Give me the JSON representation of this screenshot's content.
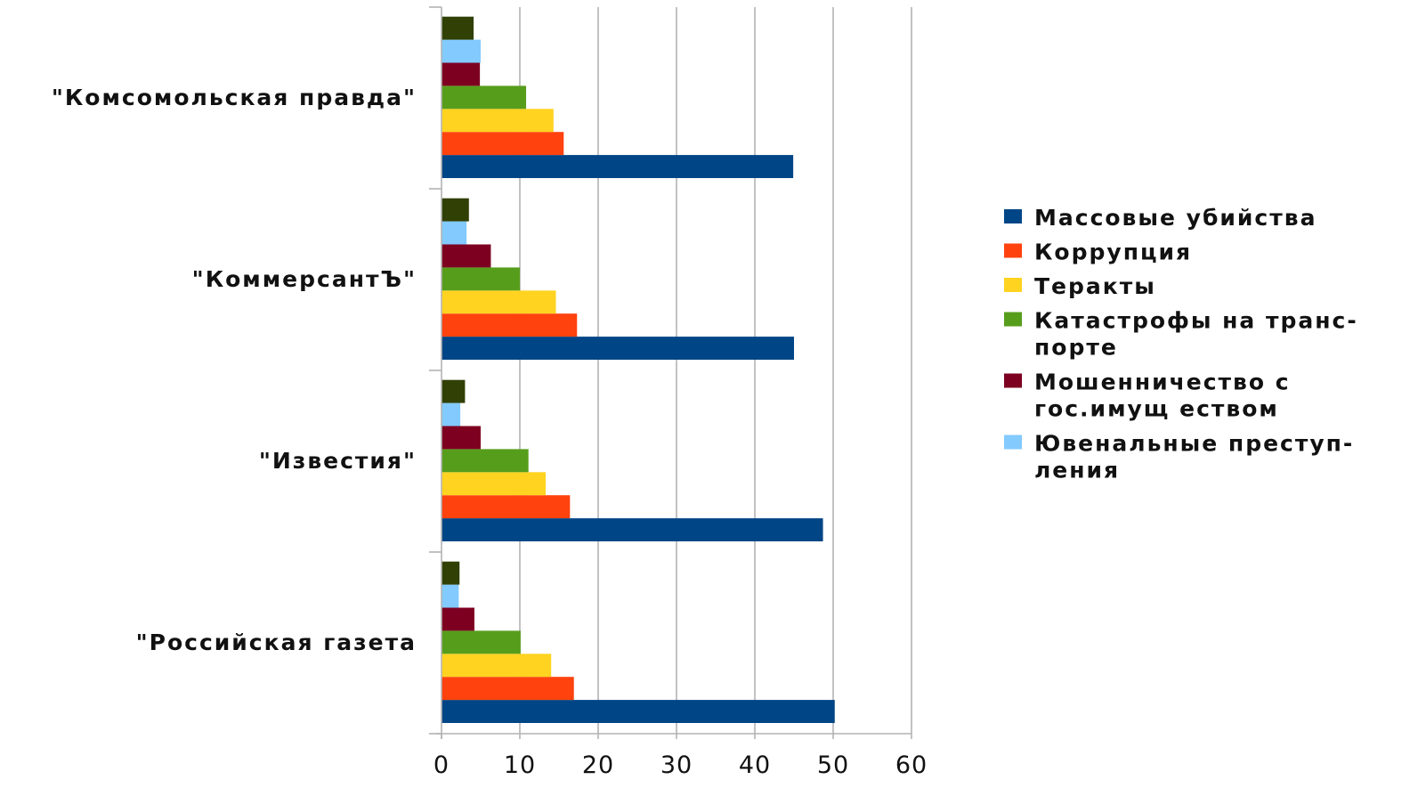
{
  "chart_data": {
    "type": "bar",
    "orientation": "horizontal",
    "categories": [
      "\"Комсомольская правда\"",
      "\"КоммерсантЪ\"",
      "\"Известия\"",
      "\"Российская газета"
    ],
    "series": [
      {
        "name": "Массовые убийства",
        "color": "#004586",
        "values": [
          44.9,
          45.0,
          48.7,
          50.2
        ]
      },
      {
        "name": "Коррупция",
        "color": "#ff420e",
        "values": [
          15.6,
          17.3,
          16.4,
          16.9
        ]
      },
      {
        "name": "Теракты",
        "color": "#ffd320",
        "values": [
          14.3,
          14.6,
          13.3,
          14.0
        ]
      },
      {
        "name": "Катастрофы на транспорте",
        "color": "#579d1c",
        "values": [
          10.8,
          10.0,
          11.1,
          10.1
        ]
      },
      {
        "name": "Мошенничество с гос.имуществом",
        "color": "#7e0021",
        "values": [
          4.9,
          6.3,
          5.0,
          4.2
        ]
      },
      {
        "name": "Ювенальные преступления",
        "color": "#83caff",
        "values": [
          5.0,
          3.2,
          2.4,
          2.2
        ]
      },
      {
        "name": "",
        "color": "#314004",
        "values": [
          4.1,
          3.5,
          3.0,
          2.3
        ]
      }
    ],
    "legend": {
      "position": "right",
      "lines": [
        [
          "Массовые убийства"
        ],
        [
          "Коррупция"
        ],
        [
          "Теракты"
        ],
        [
          "Катастрофы на транс-",
          "порте"
        ],
        [
          "Мошенничество с",
          "гос.имущ еством"
        ],
        [
          "Ювенальные преступ-",
          "ления"
        ]
      ]
    },
    "x_ticks": [
      "0",
      "10",
      "20",
      "30",
      "40",
      "50",
      "60"
    ],
    "xlim": [
      0,
      60
    ],
    "grid": true,
    "title": "",
    "xlabel": "",
    "ylabel": ""
  }
}
